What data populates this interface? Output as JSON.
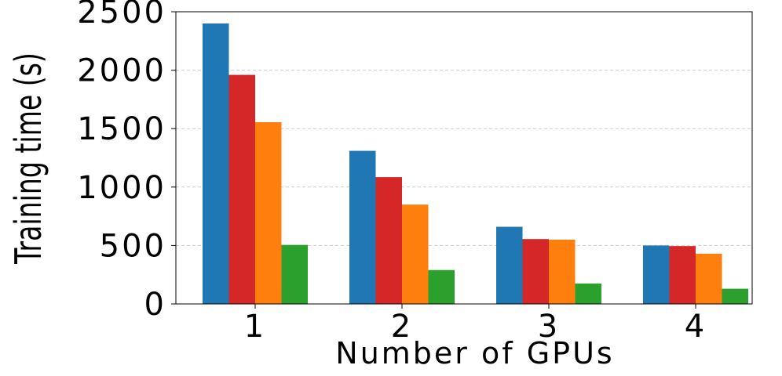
{
  "chart_data": {
    "type": "bar",
    "xlabel": "Number of GPUs",
    "ylabel": "Training time (s)",
    "categories": [
      "1",
      "2",
      "3",
      "4"
    ],
    "series": [
      {
        "color": "#1f77b4",
        "values": [
          2400,
          1310,
          660,
          500
        ]
      },
      {
        "color": "#d62728",
        "values": [
          1960,
          1085,
          555,
          495
        ]
      },
      {
        "color": "#ff7f0e",
        "values": [
          1555,
          850,
          550,
          430
        ]
      },
      {
        "color": "#2ca02c",
        "values": [
          505,
          290,
          175,
          130
        ]
      }
    ],
    "ylim": [
      0,
      2500
    ],
    "yticks": [
      0,
      500,
      1000,
      1500,
      2000,
      2500
    ],
    "grid": true
  }
}
